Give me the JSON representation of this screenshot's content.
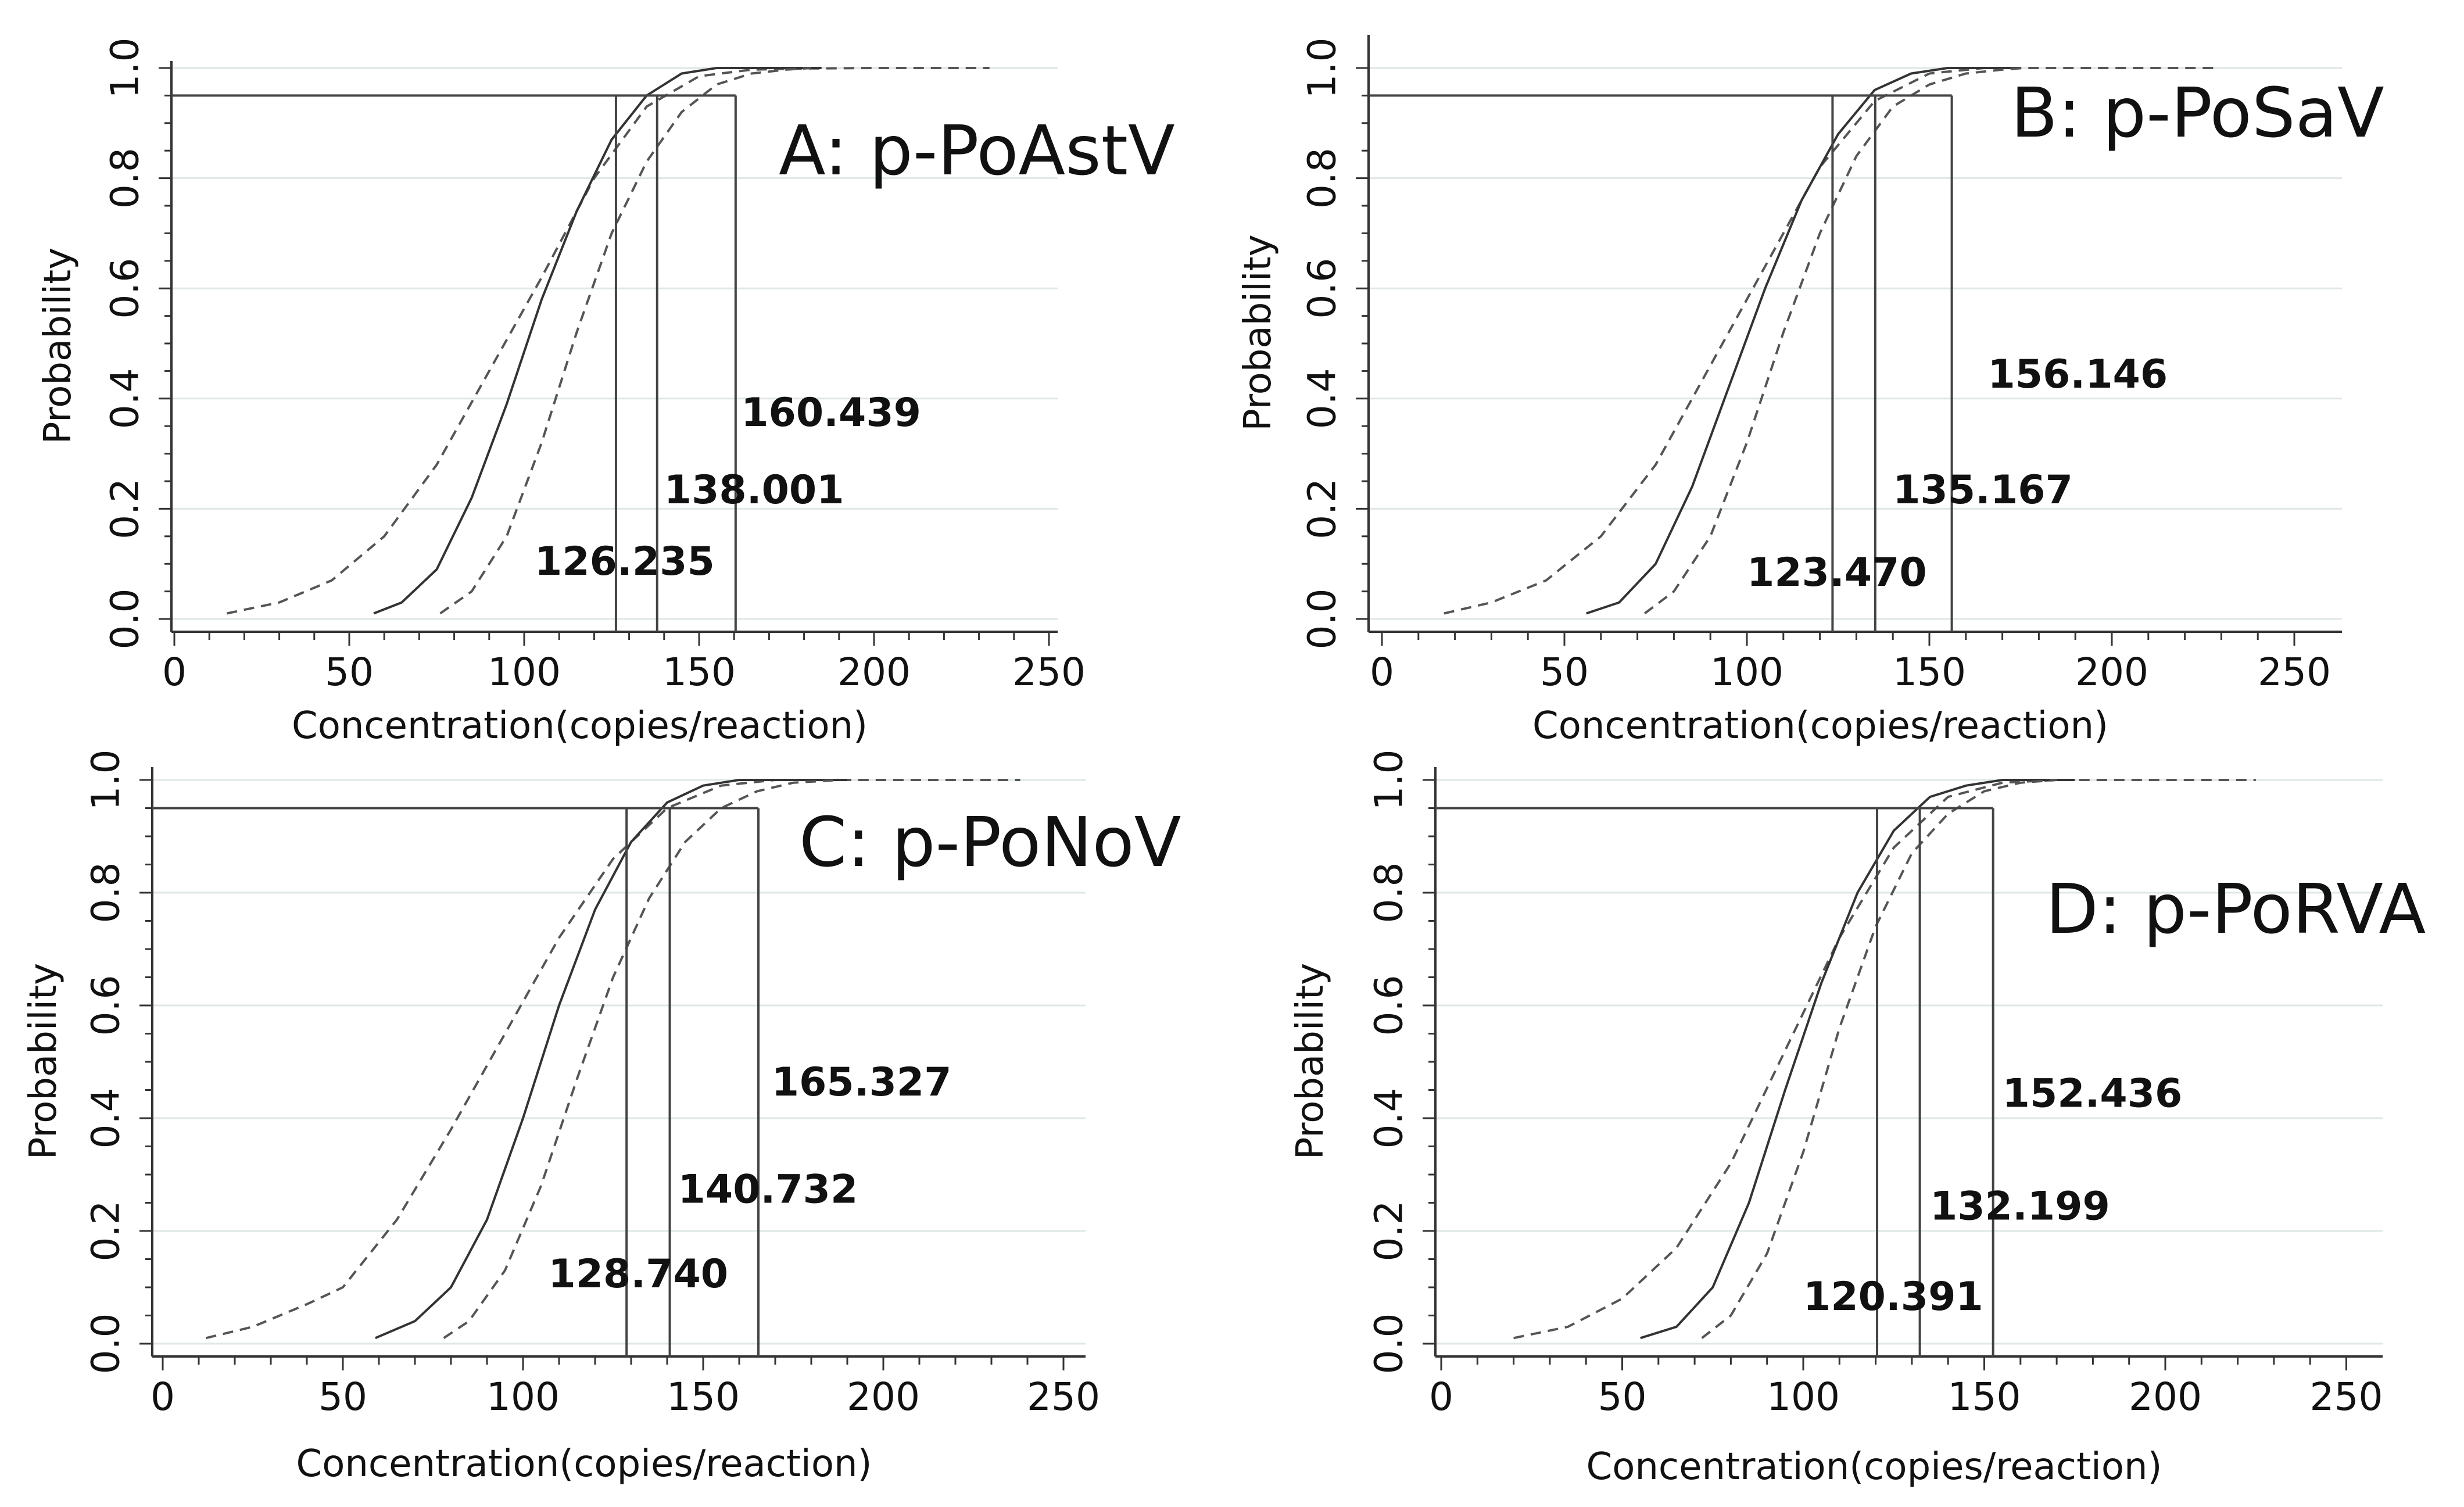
{
  "chart_data": [
    {
      "type": "line",
      "title": "A: p-PoAstV",
      "xlabel": "Concentration(copies/reaction)",
      "ylabel": "Probability",
      "xlim": [
        0,
        250
      ],
      "ylim": [
        0,
        1
      ],
      "x_ticks": [
        "0",
        "50",
        "100",
        "150",
        "200",
        "250"
      ],
      "y_ticks": [
        "0.0",
        "0.2",
        "0.4",
        "0.6",
        "0.8",
        "1.0"
      ],
      "grid": "horizontal",
      "series": [
        {
          "style": "dashed",
          "x": [
            15,
            30,
            45,
            60,
            75,
            90,
            105,
            120,
            135,
            150,
            165,
            180,
            200,
            215,
            233
          ],
          "y": [
            0.01,
            0.03,
            0.07,
            0.15,
            0.28,
            0.45,
            0.62,
            0.8,
            0.93,
            0.985,
            0.997,
            0.999,
            1.0,
            1.0,
            1.0
          ]
        },
        {
          "style": "solid",
          "x": [
            57,
            65,
            75,
            85,
            95,
            105,
            115,
            125,
            135,
            145,
            155,
            165,
            175,
            185
          ],
          "y": [
            0.01,
            0.03,
            0.09,
            0.22,
            0.39,
            0.58,
            0.74,
            0.87,
            0.95,
            0.99,
            1.0,
            1.0,
            1.0,
            1.0
          ]
        },
        {
          "style": "dashed",
          "x": [
            76,
            85,
            95,
            105,
            115,
            125,
            135,
            145,
            155,
            165,
            175,
            182
          ],
          "y": [
            0.01,
            0.05,
            0.15,
            0.32,
            0.52,
            0.7,
            0.83,
            0.92,
            0.97,
            0.99,
            0.997,
            1.0
          ]
        }
      ],
      "reference_line_y": 0.95,
      "reference_lines_x": [
        126.235,
        138.001,
        160.439
      ],
      "annotations": [
        {
          "text": "126.235",
          "x": 103,
          "y": 0.08
        },
        {
          "text": "138.001",
          "x": 140,
          "y": 0.21
        },
        {
          "text": "160.439",
          "x": 162,
          "y": 0.35
        }
      ]
    },
    {
      "type": "line",
      "title": "B: p-PoSaV",
      "xlabel": "Concentration(copies/reaction)",
      "ylabel": "Probability",
      "xlim": [
        0,
        250
      ],
      "ylim": [
        0,
        1
      ],
      "x_ticks": [
        "0",
        "50",
        "100",
        "150",
        "200",
        "250"
      ],
      "y_ticks": [
        "0.0",
        "0.2",
        "0.4",
        "0.6",
        "0.8",
        "1.0"
      ],
      "grid": "horizontal",
      "series": [
        {
          "style": "dashed",
          "x": [
            17,
            30,
            45,
            60,
            75,
            90,
            105,
            120,
            135,
            150,
            165,
            180,
            200,
            215,
            228
          ],
          "y": [
            0.01,
            0.03,
            0.07,
            0.15,
            0.28,
            0.46,
            0.64,
            0.82,
            0.94,
            0.99,
            1.0,
            1.0,
            1.0,
            1.0,
            1.0
          ]
        },
        {
          "style": "solid",
          "x": [
            56,
            65,
            75,
            85,
            95,
            105,
            115,
            125,
            135,
            145,
            155,
            165,
            175
          ],
          "y": [
            0.01,
            0.03,
            0.1,
            0.24,
            0.42,
            0.6,
            0.76,
            0.88,
            0.96,
            0.99,
            1.0,
            1.0,
            1.0
          ]
        },
        {
          "style": "dashed",
          "x": [
            72,
            80,
            90,
            100,
            110,
            120,
            130,
            140,
            150,
            160,
            170,
            176
          ],
          "y": [
            0.01,
            0.05,
            0.15,
            0.32,
            0.52,
            0.7,
            0.84,
            0.93,
            0.97,
            0.99,
            0.997,
            1.0
          ]
        }
      ],
      "reference_line_y": 0.95,
      "reference_lines_x": [
        123.47,
        135.167,
        156.146
      ],
      "annotations": [
        {
          "text": "123.470",
          "x": 100,
          "y": 0.06
        },
        {
          "text": "135.167",
          "x": 140,
          "y": 0.21
        },
        {
          "text": "156.146",
          "x": 166,
          "y": 0.42
        }
      ]
    },
    {
      "type": "line",
      "title": "C: p-PoNoV",
      "xlabel": "Concentration(copies/reaction)",
      "ylabel": "Probability",
      "xlim": [
        0,
        250
      ],
      "ylim": [
        0,
        1
      ],
      "x_ticks": [
        "0",
        "50",
        "100",
        "150",
        "200",
        "250"
      ],
      "y_ticks": [
        "0.0",
        "0.2",
        "0.4",
        "0.6",
        "0.8",
        "1.0"
      ],
      "grid": "horizontal",
      "series": [
        {
          "style": "dashed",
          "x": [
            12,
            25,
            40,
            50,
            65,
            80,
            95,
            110,
            125,
            140,
            155,
            170,
            190,
            210,
            238
          ],
          "y": [
            0.01,
            0.03,
            0.07,
            0.1,
            0.22,
            0.38,
            0.55,
            0.72,
            0.86,
            0.95,
            0.99,
            1.0,
            1.0,
            1.0,
            1.0
          ]
        },
        {
          "style": "solid",
          "x": [
            59,
            70,
            80,
            90,
            100,
            110,
            120,
            130,
            140,
            150,
            160,
            170,
            180,
            190
          ],
          "y": [
            0.01,
            0.04,
            0.1,
            0.22,
            0.4,
            0.6,
            0.77,
            0.89,
            0.96,
            0.99,
            1.0,
            1.0,
            1.0,
            1.0
          ]
        },
        {
          "style": "dashed",
          "x": [
            78,
            85,
            95,
            105,
            115,
            125,
            135,
            145,
            155,
            165,
            175,
            188
          ],
          "y": [
            0.01,
            0.04,
            0.13,
            0.28,
            0.47,
            0.65,
            0.79,
            0.89,
            0.95,
            0.98,
            0.995,
            1.0
          ]
        }
      ],
      "reference_line_y": 0.95,
      "reference_lines_x": [
        128.74,
        140.732,
        165.327
      ],
      "annotations": [
        {
          "text": "128.740",
          "x": 107,
          "y": 0.1
        },
        {
          "text": "140.732",
          "x": 143,
          "y": 0.25
        },
        {
          "text": "165.327",
          "x": 169,
          "y": 0.44
        }
      ]
    },
    {
      "type": "line",
      "title": "D: p-PoRVA",
      "xlabel": "Concentration(copies/reaction)",
      "ylabel": "Probability",
      "xlim": [
        0,
        250
      ],
      "ylim": [
        0,
        1
      ],
      "x_ticks": [
        "0",
        "50",
        "100",
        "150",
        "200",
        "250"
      ],
      "y_ticks": [
        "0.0",
        "0.2",
        "0.4",
        "0.6",
        "0.8",
        "1.0"
      ],
      "grid": "horizontal",
      "series": [
        {
          "style": "dashed",
          "x": [
            20,
            35,
            50,
            65,
            80,
            95,
            110,
            125,
            140,
            155,
            170,
            190,
            210,
            225
          ],
          "y": [
            0.01,
            0.03,
            0.08,
            0.17,
            0.32,
            0.52,
            0.72,
            0.88,
            0.97,
            0.995,
            1.0,
            1.0,
            1.0,
            1.0
          ]
        },
        {
          "style": "solid",
          "x": [
            55,
            65,
            75,
            85,
            95,
            105,
            115,
            125,
            135,
            145,
            155,
            165,
            175
          ],
          "y": [
            0.01,
            0.03,
            0.1,
            0.25,
            0.45,
            0.64,
            0.8,
            0.91,
            0.97,
            0.99,
            1.0,
            1.0,
            1.0
          ]
        },
        {
          "style": "dashed",
          "x": [
            72,
            80,
            90,
            100,
            110,
            120,
            130,
            140,
            150,
            160,
            170
          ],
          "y": [
            0.01,
            0.05,
            0.16,
            0.34,
            0.56,
            0.74,
            0.87,
            0.94,
            0.98,
            0.995,
            1.0
          ]
        }
      ],
      "reference_line_y": 0.95,
      "reference_lines_x": [
        120.391,
        132.199,
        152.436
      ],
      "annotations": [
        {
          "text": "120.391",
          "x": 100,
          "y": 0.06
        },
        {
          "text": "132.199",
          "x": 135,
          "y": 0.22
        },
        {
          "text": "152.436",
          "x": 155,
          "y": 0.42
        }
      ]
    }
  ]
}
